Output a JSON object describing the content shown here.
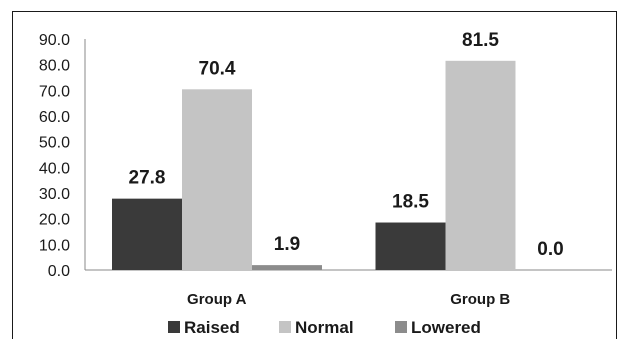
{
  "chart_data": {
    "type": "bar",
    "categories": [
      "Group A",
      "Group B"
    ],
    "series": [
      {
        "name": "Raised",
        "values": [
          27.8,
          18.5
        ],
        "color": "#3a3a3a"
      },
      {
        "name": "Normal",
        "values": [
          70.4,
          81.5
        ],
        "color": "#c4c4c4"
      },
      {
        "name": "Lowered",
        "values": [
          1.9,
          0.0
        ],
        "color": "#8c8c8c"
      }
    ],
    "data_labels": [
      [
        "27.8",
        "18.5"
      ],
      [
        "70.4",
        "81.5"
      ],
      [
        "1.9",
        "0.0"
      ]
    ],
    "y_ticks": [
      "0.0",
      "10.0",
      "20.0",
      "30.0",
      "40.0",
      "50.0",
      "60.0",
      "70.0",
      "80.0",
      "90.0"
    ],
    "ylim": [
      0,
      90
    ],
    "grid": false,
    "legend_position": "bottom",
    "title": "",
    "xlabel": "",
    "ylabel": ""
  }
}
